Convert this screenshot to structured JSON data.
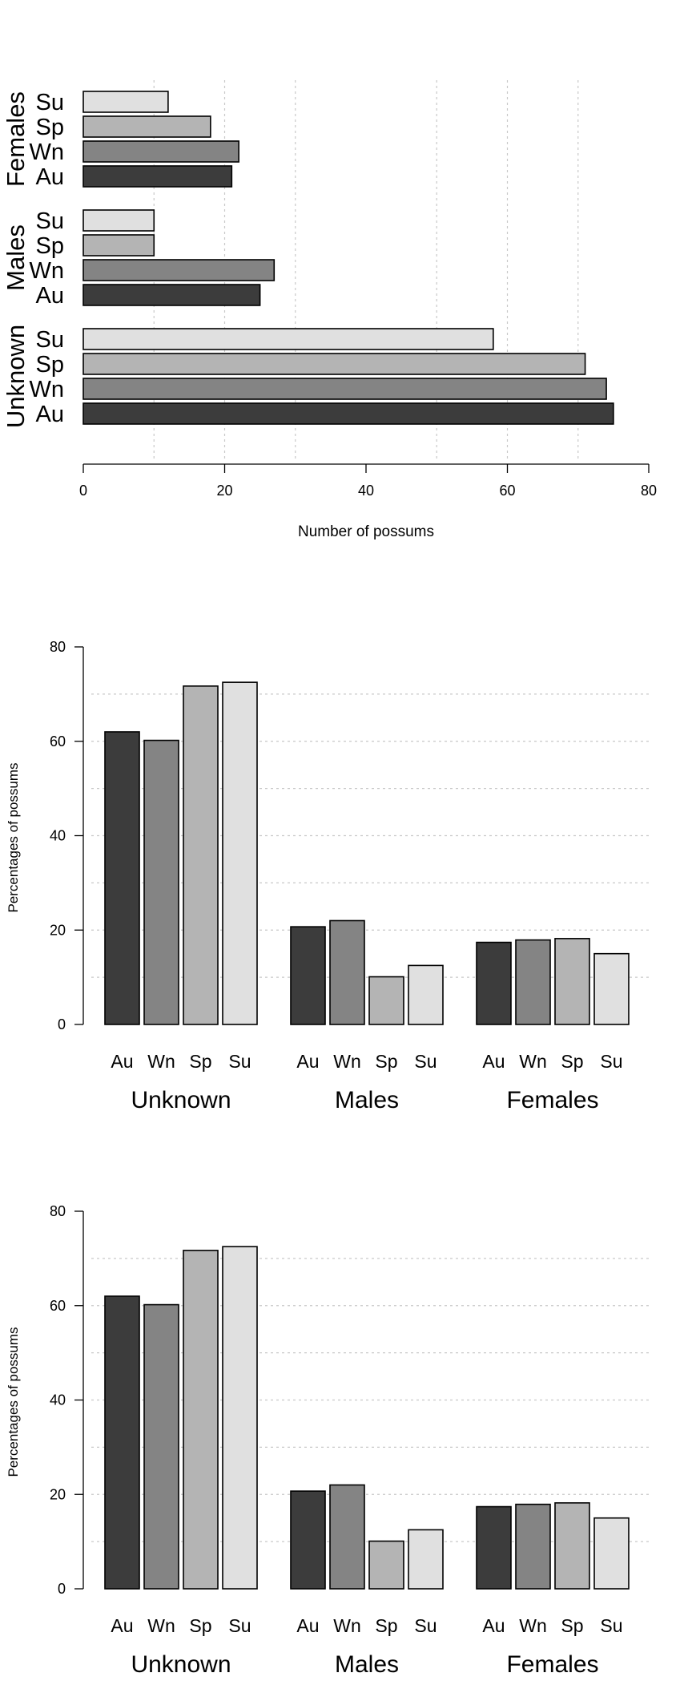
{
  "chart_data": [
    {
      "type": "bar",
      "orientation": "horizontal",
      "xlabel": "Number of possums",
      "xlim": [
        0,
        80
      ],
      "xticks": [
        0,
        20,
        40,
        60,
        80
      ],
      "gridlines_x": [
        10,
        20,
        30,
        50,
        60,
        70
      ],
      "groups": [
        "Unknown",
        "Males",
        "Females"
      ],
      "categories": [
        "Au",
        "Wn",
        "Sp",
        "Su"
      ],
      "series": [
        {
          "group": "Unknown",
          "values": [
            75,
            74,
            71,
            58
          ]
        },
        {
          "group": "Males",
          "values": [
            25,
            27,
            10,
            10
          ]
        },
        {
          "group": "Females",
          "values": [
            21,
            22,
            18,
            12
          ]
        }
      ]
    },
    {
      "type": "bar",
      "orientation": "vertical",
      "ylabel": "Percentages of possums",
      "ylim": [
        0,
        80
      ],
      "yticks": [
        0,
        20,
        40,
        60,
        80
      ],
      "gridlines_y": [
        10,
        20,
        30,
        40,
        50,
        60,
        70
      ],
      "groups": [
        "Unknown",
        "Males",
        "Females"
      ],
      "categories": [
        "Au",
        "Wn",
        "Sp",
        "Su"
      ],
      "series": [
        {
          "group": "Unknown",
          "values": [
            62.0,
            60.2,
            71.7,
            72.5
          ]
        },
        {
          "group": "Males",
          "values": [
            20.7,
            22.0,
            10.1,
            12.5
          ]
        },
        {
          "group": "Females",
          "values": [
            17.4,
            17.9,
            18.2,
            15.0
          ]
        }
      ]
    },
    {
      "type": "bar",
      "orientation": "vertical",
      "ylabel": "Percentages of possums",
      "ylim": [
        0,
        80
      ],
      "yticks": [
        0,
        20,
        40,
        60,
        80
      ],
      "gridlines_y": [
        10,
        20,
        30,
        40,
        50,
        60,
        70
      ],
      "groups": [
        "Unknown",
        "Males",
        "Females"
      ],
      "categories": [
        "Au",
        "Wn",
        "Sp",
        "Su"
      ],
      "series": [
        {
          "group": "Unknown",
          "values": [
            62.0,
            60.2,
            71.7,
            72.5
          ]
        },
        {
          "group": "Males",
          "values": [
            20.7,
            22.0,
            10.1,
            12.5
          ]
        },
        {
          "group": "Females",
          "values": [
            17.4,
            17.9,
            18.2,
            15.0
          ]
        }
      ]
    }
  ],
  "colors": {
    "Au": "#3c3c3c",
    "Wn": "#848484",
    "Sp": "#b4b4b4",
    "Su": "#e0e0e0"
  }
}
